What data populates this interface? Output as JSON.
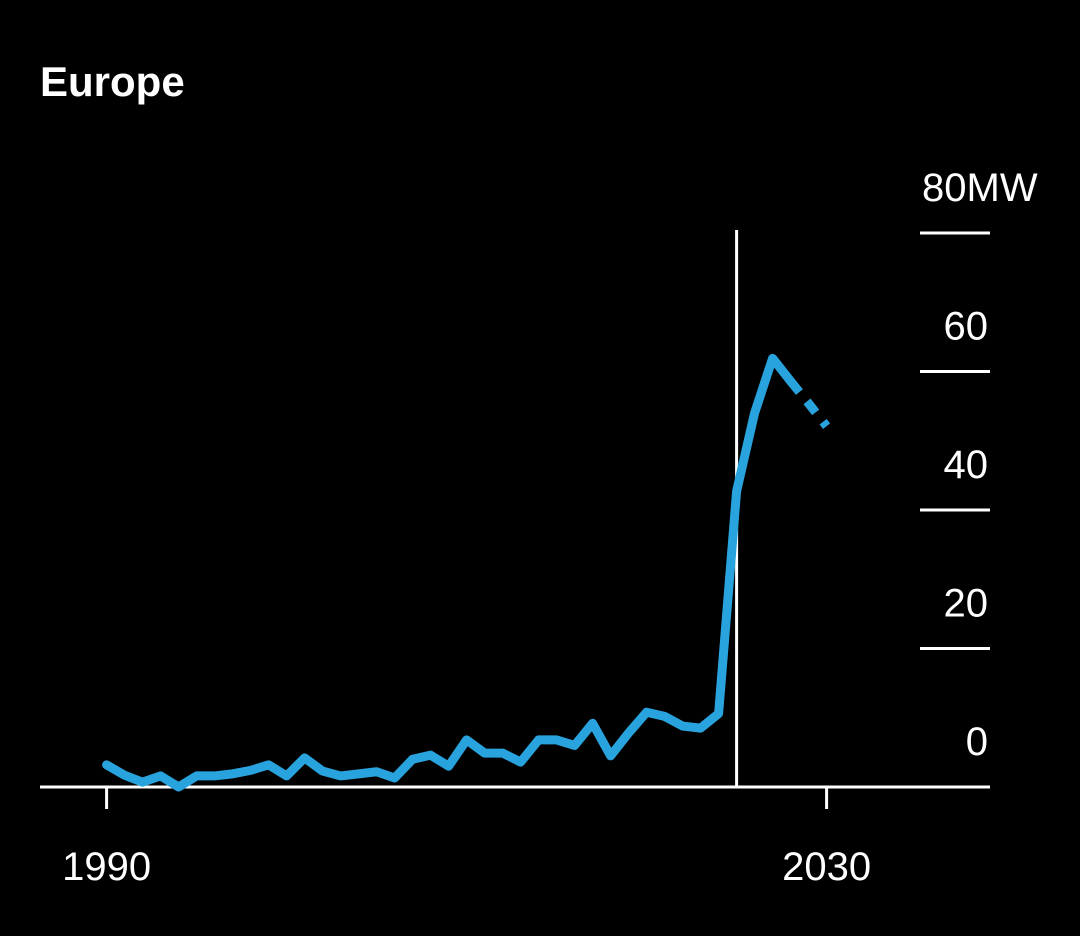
{
  "chart_data": {
    "type": "line",
    "title": "Europe",
    "x": [
      1990,
      1991,
      1992,
      1993,
      1994,
      1995,
      1996,
      1997,
      1998,
      1999,
      2000,
      2001,
      2002,
      2003,
      2004,
      2005,
      2006,
      2007,
      2008,
      2009,
      2010,
      2011,
      2012,
      2013,
      2014,
      2015,
      2016,
      2017,
      2018,
      2019,
      2020,
      2021,
      2022,
      2023,
      2024,
      2025,
      2026,
      2027,
      2028,
      2029,
      2030
    ],
    "series": [
      {
        "color": "#29a3dd",
        "dashed_from": 2028,
        "values": [
          3.2,
          1.7,
          0.7,
          1.6,
          0,
          1.6,
          1.6,
          1.9,
          2.4,
          3.2,
          1.6,
          4.2,
          2.3,
          1.6,
          1.9,
          2.2,
          1.3,
          4,
          4.6,
          3,
          6.8,
          4.9,
          4.9,
          3.6,
          6.8,
          6.8,
          6,
          9.2,
          4.5,
          7.8,
          10.8,
          10.2,
          8.8,
          8.5,
          10.6,
          42.7,
          54,
          61.9,
          58.6,
          55.4,
          52.1
        ]
      }
    ],
    "xlim": [
      1986.3,
      2038.8
    ],
    "xticks": [
      1990,
      2030
    ],
    "ylim": [
      0,
      80
    ],
    "yticks": [
      0,
      20,
      40,
      60,
      {
        "value": 80,
        "label": "80MW"
      }
    ],
    "vline": 2025
  }
}
